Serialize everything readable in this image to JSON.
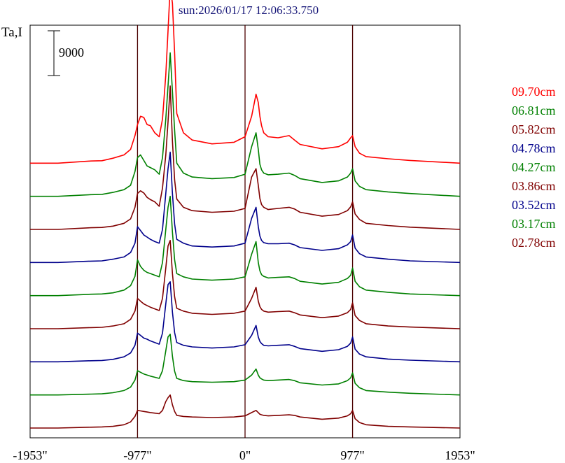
{
  "chart_data": {
    "type": "line",
    "title": "sun:2026/01/17 12:06:33.750",
    "ylabel": "Ta,I",
    "scale_bar_label": "9000",
    "x_ticks": [
      {
        "value": -1953,
        "label": "-1953\""
      },
      {
        "value": -977,
        "label": "-977\""
      },
      {
        "value": 0,
        "label": "0\""
      },
      {
        "value": 977,
        "label": "977\""
      },
      {
        "value": 1953,
        "label": "1953\""
      }
    ],
    "xlim": [
      -1953,
      1953
    ],
    "vertical_lines": [
      -977,
      0,
      977
    ],
    "offset_between_traces": 6000,
    "ylim": [
      0,
      72000
    ],
    "x": [
      -1953,
      -1700,
      -1400,
      -1300,
      -1200,
      -1100,
      -1040,
      -1000,
      -977,
      -950,
      -920,
      -890,
      -860,
      -820,
      -780,
      -750,
      -720,
      -700,
      -680,
      -660,
      -640,
      -620,
      -560,
      -480,
      -300,
      -100,
      0,
      60,
      100,
      120,
      135,
      150,
      170,
      210,
      300,
      400,
      450,
      500,
      700,
      850,
      930,
      960,
      977,
      1000,
      1040,
      1100,
      1300,
      1500,
      1953
    ],
    "series": [
      {
        "name": "09.70cm",
        "color": "#ff0000",
        "values": [
          0,
          0,
          400,
          450,
          900,
          1500,
          2500,
          5000,
          7000,
          8500,
          8300,
          7000,
          6800,
          5500,
          4800,
          8000,
          16000,
          24000,
          32000,
          29000,
          20000,
          9000,
          5500,
          4200,
          3500,
          3800,
          4800,
          8500,
          12500,
          11000,
          8500,
          6800,
          5500,
          4800,
          4600,
          5000,
          4200,
          3400,
          2600,
          3000,
          3800,
          4600,
          5000,
          3000,
          1800,
          1200,
          800,
          500,
          0
        ]
      },
      {
        "name": "06.81cm",
        "color": "#008000",
        "values": [
          0,
          0,
          300,
          350,
          700,
          1200,
          2000,
          4500,
          7000,
          7500,
          6500,
          5500,
          5200,
          4800,
          4000,
          7000,
          14000,
          20000,
          26000,
          19000,
          12000,
          6000,
          4200,
          3500,
          3200,
          3400,
          4000,
          9000,
          11500,
          8500,
          5800,
          4800,
          4200,
          3900,
          4000,
          4200,
          3800,
          3200,
          2500,
          2800,
          3500,
          4200,
          5000,
          2800,
          1800,
          1200,
          800,
          500,
          0
        ]
      },
      {
        "name": "05.82cm",
        "color": "#800000",
        "values": [
          0,
          0,
          300,
          350,
          600,
          1100,
          1900,
          4000,
          6500,
          7000,
          6600,
          5800,
          5400,
          5000,
          4200,
          7500,
          13500,
          19500,
          26000,
          16000,
          9000,
          5500,
          4000,
          3400,
          3100,
          3300,
          3800,
          9500,
          11000,
          8000,
          5600,
          4500,
          4000,
          3600,
          3800,
          4000,
          3700,
          3100,
          2400,
          2700,
          3400,
          4100,
          5000,
          2800,
          1800,
          1100,
          700,
          400,
          0
        ]
      },
      {
        "name": "04.78cm",
        "color": "#00008b",
        "values": [
          0,
          0,
          250,
          300,
          600,
          1000,
          1800,
          3500,
          6500,
          5800,
          5000,
          4600,
          4200,
          3800,
          3500,
          6000,
          12500,
          17000,
          20000,
          12500,
          7000,
          4200,
          3500,
          3000,
          2800,
          3000,
          3500,
          8000,
          10000,
          6500,
          4800,
          4000,
          3600,
          3400,
          3400,
          3500,
          3200,
          2700,
          2200,
          2500,
          3200,
          3800,
          5000,
          2600,
          1600,
          1000,
          600,
          300,
          0
        ]
      },
      {
        "name": "04.27cm",
        "color": "#008000",
        "values": [
          0,
          0,
          250,
          300,
          500,
          1000,
          1800,
          3500,
          6500,
          5300,
          4600,
          4200,
          4000,
          3700,
          3400,
          6000,
          12000,
          16000,
          18000,
          11500,
          6500,
          4000,
          3400,
          3000,
          2800,
          3000,
          3400,
          7500,
          9800,
          6000,
          4500,
          3800,
          3500,
          3200,
          3300,
          3400,
          3100,
          2600,
          2100,
          2400,
          3100,
          3700,
          5000,
          2600,
          1600,
          1000,
          600,
          300,
          0
        ]
      },
      {
        "name": "03.86cm",
        "color": "#800000",
        "values": [
          0,
          0,
          200,
          250,
          500,
          900,
          1700,
          3200,
          5500,
          5000,
          4500,
          4200,
          3900,
          3600,
          3300,
          5500,
          11000,
          15000,
          16000,
          10000,
          5800,
          3700,
          3200,
          2800,
          2600,
          2800,
          3200,
          5500,
          7500,
          5000,
          4000,
          3500,
          3200,
          3000,
          3100,
          3200,
          2900,
          2500,
          2000,
          2300,
          2900,
          3500,
          4700,
          2400,
          1500,
          900,
          500,
          300,
          0
        ]
      },
      {
        "name": "03.52cm",
        "color": "#00008b",
        "values": [
          0,
          0,
          200,
          250,
          450,
          900,
          1600,
          3000,
          5200,
          4800,
          4300,
          4100,
          3800,
          3500,
          3200,
          5200,
          10500,
          14000,
          14500,
          9000,
          5300,
          3500,
          3000,
          2700,
          2500,
          2700,
          3100,
          4800,
          6600,
          4500,
          3700,
          3300,
          3000,
          2900,
          3000,
          3100,
          2800,
          2400,
          1900,
          2200,
          2800,
          3400,
          4500,
          2300,
          1400,
          900,
          500,
          300,
          0
        ]
      },
      {
        "name": "03.17cm",
        "color": "#008000",
        "values": [
          0,
          0,
          150,
          200,
          400,
          800,
          1400,
          2700,
          4400,
          4100,
          3800,
          3600,
          3400,
          3200,
          3000,
          4400,
          8000,
          10500,
          11000,
          7000,
          4300,
          3000,
          2600,
          2400,
          2300,
          2400,
          2700,
          3600,
          4700,
          3600,
          3100,
          2900,
          2700,
          2600,
          2700,
          2800,
          2600,
          2200,
          1800,
          2000,
          2600,
          3100,
          4000,
          2100,
          1300,
          800,
          500,
          300,
          0
        ]
      },
      {
        "name": "02.78cm",
        "color": "#800000",
        "values": [
          0,
          0,
          150,
          200,
          300,
          600,
          1100,
          2100,
          3200,
          3100,
          3000,
          2900,
          2800,
          2700,
          2600,
          3200,
          4800,
          5500,
          6000,
          4200,
          3000,
          2300,
          2100,
          2000,
          1900,
          2000,
          2200,
          2800,
          3200,
          2800,
          2500,
          2400,
          2300,
          2200,
          2300,
          2400,
          2300,
          2000,
          1600,
          1800,
          2200,
          2600,
          3200,
          1700,
          1000,
          600,
          300,
          200,
          0
        ]
      }
    ]
  }
}
